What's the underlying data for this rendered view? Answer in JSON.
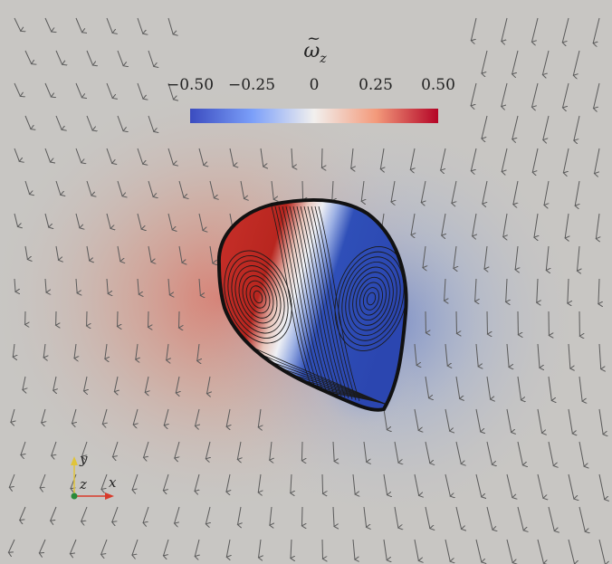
{
  "colorbar": {
    "title_symbol": "ω",
    "title_subscript": "z",
    "ticks": [
      "−0.50",
      "−0.25",
      "0",
      "0.25",
      "0.50"
    ],
    "range": [
      -0.5,
      0.5
    ],
    "colors": {
      "low": "#3b4cc0",
      "mid": "#f2f0ee",
      "high": "#b40426"
    }
  },
  "axes_triad": {
    "x_label": "x",
    "y_label": "y",
    "z_label": "z"
  },
  "scene": {
    "background_color": "#c8c6c3",
    "arrow_color": "#5a5a5a",
    "outline_color": "#111111",
    "streamline_color": "#1a1a1a"
  }
}
